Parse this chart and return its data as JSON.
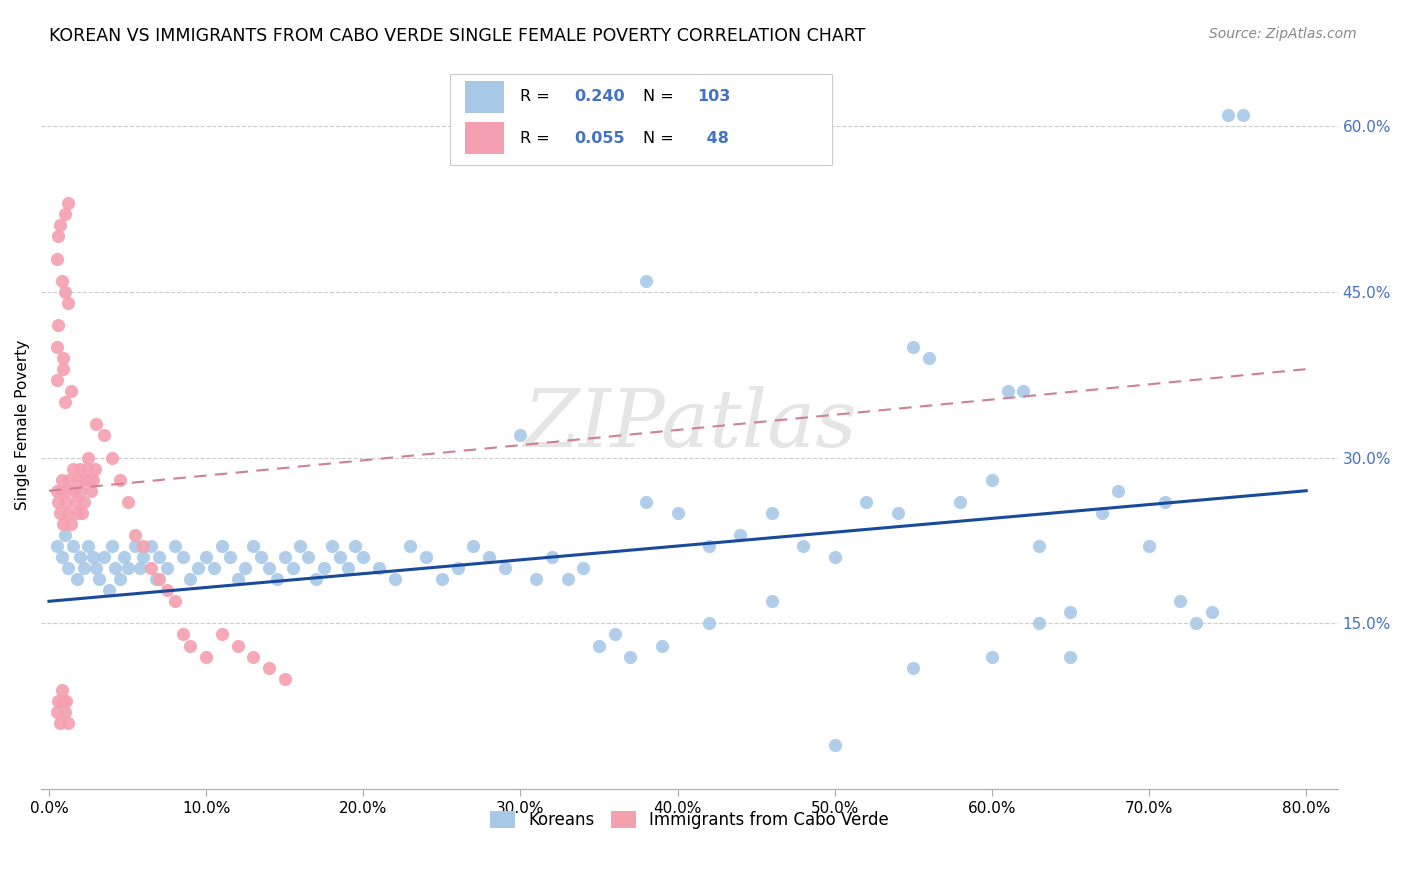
{
  "title": "KOREAN VS IMMIGRANTS FROM CABO VERDE SINGLE FEMALE POVERTY CORRELATION CHART",
  "source": "Source: ZipAtlas.com",
  "ylabel": "Single Female Poverty",
  "watermark": "ZIPatlas",
  "blue_R": 0.24,
  "blue_N": 103,
  "pink_R": 0.055,
  "pink_N": 48,
  "blue_color": "#a8c8e8",
  "pink_color": "#f4a0b0",
  "blue_line_color": "#1a4a9a",
  "pink_line_color": "#d08090",
  "legend_label_blue": "Koreans",
  "legend_label_pink": "Immigrants from Cabo Verde",
  "legend_text_color": "#4472c4",
  "right_tick_color": "#4472c4",
  "grid_color": "#cccccc",
  "xtick_vals": [
    0.0,
    0.1,
    0.2,
    0.3,
    0.4,
    0.5,
    0.6,
    0.7,
    0.8
  ],
  "ytick_vals": [
    0.15,
    0.3,
    0.45,
    0.6
  ],
  "xlim": [
    -0.005,
    0.82
  ],
  "ylim": [
    0.0,
    0.66
  ],
  "blue_x": [
    0.005,
    0.008,
    0.01,
    0.012,
    0.015,
    0.018,
    0.02,
    0.022,
    0.025,
    0.028,
    0.03,
    0.032,
    0.035,
    0.038,
    0.04,
    0.042,
    0.045,
    0.048,
    0.05,
    0.055,
    0.058,
    0.06,
    0.065,
    0.068,
    0.07,
    0.075,
    0.08,
    0.085,
    0.09,
    0.095,
    0.1,
    0.105,
    0.11,
    0.115,
    0.12,
    0.125,
    0.13,
    0.135,
    0.14,
    0.145,
    0.15,
    0.155,
    0.16,
    0.165,
    0.17,
    0.175,
    0.18,
    0.185,
    0.19,
    0.195,
    0.2,
    0.21,
    0.22,
    0.23,
    0.24,
    0.25,
    0.26,
    0.27,
    0.28,
    0.29,
    0.3,
    0.31,
    0.32,
    0.33,
    0.34,
    0.35,
    0.36,
    0.37,
    0.38,
    0.39,
    0.4,
    0.42,
    0.44,
    0.46,
    0.48,
    0.5,
    0.52,
    0.54,
    0.55,
    0.56,
    0.58,
    0.6,
    0.61,
    0.62,
    0.63,
    0.65,
    0.67,
    0.68,
    0.7,
    0.71,
    0.72,
    0.73,
    0.74,
    0.75,
    0.76,
    0.63,
    0.65,
    0.5,
    0.38,
    0.42,
    0.46,
    0.6,
    0.55
  ],
  "blue_y": [
    0.22,
    0.21,
    0.23,
    0.2,
    0.22,
    0.19,
    0.21,
    0.2,
    0.22,
    0.21,
    0.2,
    0.19,
    0.21,
    0.18,
    0.22,
    0.2,
    0.19,
    0.21,
    0.2,
    0.22,
    0.2,
    0.21,
    0.22,
    0.19,
    0.21,
    0.2,
    0.22,
    0.21,
    0.19,
    0.2,
    0.21,
    0.2,
    0.22,
    0.21,
    0.19,
    0.2,
    0.22,
    0.21,
    0.2,
    0.19,
    0.21,
    0.2,
    0.22,
    0.21,
    0.19,
    0.2,
    0.22,
    0.21,
    0.2,
    0.22,
    0.21,
    0.2,
    0.19,
    0.22,
    0.21,
    0.19,
    0.2,
    0.22,
    0.21,
    0.2,
    0.32,
    0.19,
    0.21,
    0.19,
    0.2,
    0.13,
    0.14,
    0.12,
    0.46,
    0.13,
    0.25,
    0.22,
    0.23,
    0.25,
    0.22,
    0.04,
    0.26,
    0.25,
    0.4,
    0.39,
    0.26,
    0.28,
    0.36,
    0.36,
    0.22,
    0.16,
    0.25,
    0.27,
    0.22,
    0.26,
    0.17,
    0.15,
    0.16,
    0.61,
    0.61,
    0.15,
    0.12,
    0.21,
    0.26,
    0.15,
    0.17,
    0.12,
    0.11
  ],
  "pink_x": [
    0.005,
    0.006,
    0.007,
    0.008,
    0.009,
    0.01,
    0.011,
    0.012,
    0.013,
    0.014,
    0.015,
    0.016,
    0.017,
    0.018,
    0.019,
    0.02,
    0.021,
    0.022,
    0.023,
    0.024,
    0.025,
    0.026,
    0.027,
    0.028,
    0.029,
    0.03,
    0.035,
    0.04,
    0.045,
    0.05,
    0.055,
    0.06,
    0.065,
    0.07,
    0.075,
    0.08,
    0.085,
    0.09,
    0.1,
    0.11,
    0.12,
    0.13,
    0.14,
    0.15,
    0.005,
    0.008,
    0.01,
    0.012
  ],
  "pink_y": [
    0.27,
    0.26,
    0.25,
    0.28,
    0.24,
    0.27,
    0.26,
    0.25,
    0.28,
    0.24,
    0.29,
    0.27,
    0.26,
    0.25,
    0.28,
    0.27,
    0.25,
    0.26,
    0.28,
    0.29,
    0.3,
    0.28,
    0.27,
    0.28,
    0.29,
    0.33,
    0.32,
    0.3,
    0.28,
    0.26,
    0.23,
    0.22,
    0.2,
    0.19,
    0.18,
    0.17,
    0.14,
    0.13,
    0.12,
    0.14,
    0.13,
    0.12,
    0.11,
    0.1,
    0.48,
    0.46,
    0.45,
    0.44
  ],
  "pink_extra_x": [
    0.005,
    0.006,
    0.007,
    0.008,
    0.009,
    0.01,
    0.011,
    0.012,
    0.01,
    0.005,
    0.009,
    0.009,
    0.005,
    0.006,
    0.014,
    0.006,
    0.007,
    0.01,
    0.012,
    0.02,
    0.008
  ],
  "pink_extra_y": [
    0.07,
    0.08,
    0.06,
    0.09,
    0.08,
    0.07,
    0.08,
    0.06,
    0.35,
    0.37,
    0.38,
    0.39,
    0.4,
    0.42,
    0.36,
    0.5,
    0.51,
    0.52,
    0.53,
    0.29,
    0.27
  ]
}
